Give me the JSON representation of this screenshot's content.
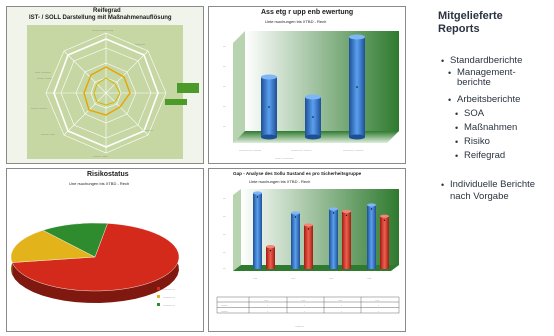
{
  "sidebar": {
    "title_line1": "Mitgelieferte",
    "title_line2": "Reports",
    "items": [
      {
        "text": "Standardberichte",
        "level": 1
      },
      {
        "text": "Management-",
        "level": 2
      },
      {
        "text": "berichte",
        "level": 2,
        "continuation": true
      },
      {
        "text": "Arbeitsberichte",
        "level": 2
      },
      {
        "text": "SOA",
        "level": 3
      },
      {
        "text": "Maßnahmen",
        "level": 3
      },
      {
        "text": "Risiko",
        "level": 3
      },
      {
        "text": "Reifegrad",
        "level": 3
      },
      {
        "text": "Individuelle  Berichte",
        "level": 1
      },
      {
        "text": "nach Vorgabe",
        "level": 1,
        "continuation": true
      }
    ]
  },
  "panels": {
    "radar": {
      "title": "Reifegrad",
      "subtitle": "IST- / SOLL Darstellung mit Maßnahmenauflösung",
      "colors": {
        "bg": "#c7d7a4",
        "soll": "#ffffff",
        "ist": "#e8a400",
        "mass": "#d7b400"
      }
    },
    "bars3d": {
      "title": "Ass etg r upp enb ewertung",
      "subtitle": "Unte rsuchungen bis XTBD - Rech",
      "colors": {
        "wall": "#2f7a2f",
        "bar": "#2e75c9"
      },
      "bar_values": [
        0.6,
        0.4,
        1.0
      ]
    },
    "pie": {
      "title": "Risikostatus",
      "subtitle": "Une rsuchungen bis XTBD - Rech",
      "slices": [
        {
          "color": "#d42a1c",
          "fraction": 0.7
        },
        {
          "color": "#e3b31c",
          "fraction": 0.17
        },
        {
          "color": "#2e8b2e",
          "fraction": 0.13
        }
      ]
    },
    "grouped": {
      "title": "Gap - Analyse des Sollu Sustand es pro Sicherheitsgruppe",
      "subtitle": "Unte rsuchungen bis XTBD - Rech",
      "colors": {
        "blue": "#2e75c9",
        "red": "#d63a2a",
        "wall": "#2f7a2f"
      },
      "groups": [
        {
          "blue": 0.95,
          "red": 0.28
        },
        {
          "blue": 0.7,
          "red": 0.55
        },
        {
          "blue": 0.75,
          "red": 0.72
        },
        {
          "blue": 0.8,
          "red": 0.66
        }
      ]
    }
  }
}
